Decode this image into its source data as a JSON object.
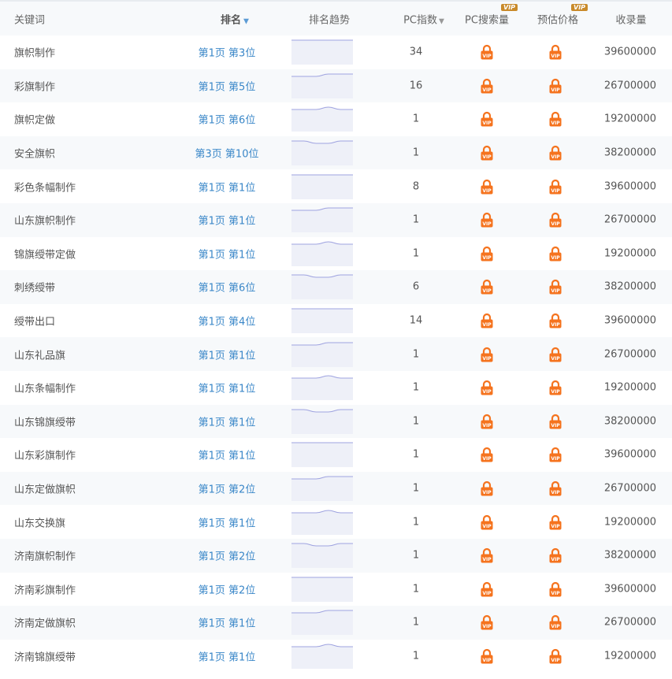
{
  "header": {
    "keyword": "关键词",
    "rank": "排名",
    "trend": "排名趋势",
    "pc_index": "PC指数",
    "pc_search": "PC搜索量",
    "price": "预估价格",
    "indexed": "收录量",
    "vip": "VIP"
  },
  "colors": {
    "link": "#3a87c8",
    "lock": "#f5731e",
    "vip_badge": "#c98a2a",
    "trend_line": "#9fa3e0",
    "trend_fill": "#eef0f8"
  },
  "rows": [
    {
      "keyword": "旗帜制作",
      "rank": "第1页 第3位",
      "pc_index": "34",
      "indexed": "39600000",
      "trend": [
        0,
        0,
        0,
        0,
        0,
        0
      ]
    },
    {
      "keyword": "彩旗制作",
      "rank": "第1页 第5位",
      "pc_index": "16",
      "indexed": "26700000",
      "trend": [
        1,
        1,
        1,
        0,
        0,
        0
      ]
    },
    {
      "keyword": "旗帜定做",
      "rank": "第1页 第6位",
      "pc_index": "1",
      "indexed": "19200000",
      "trend": [
        1,
        1,
        1,
        0,
        1,
        1
      ]
    },
    {
      "keyword": "安全旗帜",
      "rank": "第3页 第10位",
      "pc_index": "1",
      "indexed": "38200000",
      "trend": [
        0,
        0,
        1,
        1,
        0,
        0
      ]
    },
    {
      "keyword": "彩色条幅制作",
      "rank": "第1页 第1位",
      "pc_index": "8",
      "indexed": "39600000",
      "trend": [
        0,
        0,
        0,
        0,
        0,
        0
      ]
    },
    {
      "keyword": "山东旗帜制作",
      "rank": "第1页 第1位",
      "pc_index": "1",
      "indexed": "26700000",
      "trend": [
        1,
        1,
        1,
        0,
        0,
        0
      ]
    },
    {
      "keyword": "锦旗绶带定做",
      "rank": "第1页 第1位",
      "pc_index": "1",
      "indexed": "19200000",
      "trend": [
        1,
        1,
        1,
        0,
        1,
        1
      ]
    },
    {
      "keyword": "刺绣绶带",
      "rank": "第1页 第6位",
      "pc_index": "6",
      "indexed": "38200000",
      "trend": [
        0,
        0,
        1,
        1,
        0,
        0
      ]
    },
    {
      "keyword": "绶带出口",
      "rank": "第1页 第4位",
      "pc_index": "14",
      "indexed": "39600000",
      "trend": [
        0,
        0,
        0,
        0,
        0,
        0
      ]
    },
    {
      "keyword": "山东礼品旗",
      "rank": "第1页 第1位",
      "pc_index": "1",
      "indexed": "26700000",
      "trend": [
        1,
        1,
        1,
        0,
        0,
        0
      ]
    },
    {
      "keyword": "山东条幅制作",
      "rank": "第1页 第1位",
      "pc_index": "1",
      "indexed": "19200000",
      "trend": [
        1,
        1,
        1,
        0,
        1,
        1
      ]
    },
    {
      "keyword": "山东锦旗绶带",
      "rank": "第1页 第1位",
      "pc_index": "1",
      "indexed": "38200000",
      "trend": [
        0,
        0,
        1,
        1,
        0,
        0
      ]
    },
    {
      "keyword": "山东彩旗制作",
      "rank": "第1页 第1位",
      "pc_index": "1",
      "indexed": "39600000",
      "trend": [
        0,
        0,
        0,
        0,
        0,
        0
      ]
    },
    {
      "keyword": "山东定做旗帜",
      "rank": "第1页 第2位",
      "pc_index": "1",
      "indexed": "26700000",
      "trend": [
        1,
        1,
        1,
        0,
        0,
        0
      ]
    },
    {
      "keyword": "山东交换旗",
      "rank": "第1页 第1位",
      "pc_index": "1",
      "indexed": "19200000",
      "trend": [
        1,
        1,
        1,
        0,
        1,
        1
      ]
    },
    {
      "keyword": "济南旗帜制作",
      "rank": "第1页 第2位",
      "pc_index": "1",
      "indexed": "38200000",
      "trend": [
        0,
        0,
        1,
        1,
        0,
        0
      ]
    },
    {
      "keyword": "济南彩旗制作",
      "rank": "第1页 第2位",
      "pc_index": "1",
      "indexed": "39600000",
      "trend": [
        0,
        0,
        0,
        0,
        0,
        0
      ]
    },
    {
      "keyword": "济南定做旗帜",
      "rank": "第1页 第1位",
      "pc_index": "1",
      "indexed": "26700000",
      "trend": [
        1,
        1,
        1,
        0,
        0,
        0
      ]
    },
    {
      "keyword": "济南锦旗绶带",
      "rank": "第1页 第1位",
      "pc_index": "1",
      "indexed": "19200000",
      "trend": [
        1,
        1,
        1,
        0,
        1,
        1
      ]
    }
  ]
}
